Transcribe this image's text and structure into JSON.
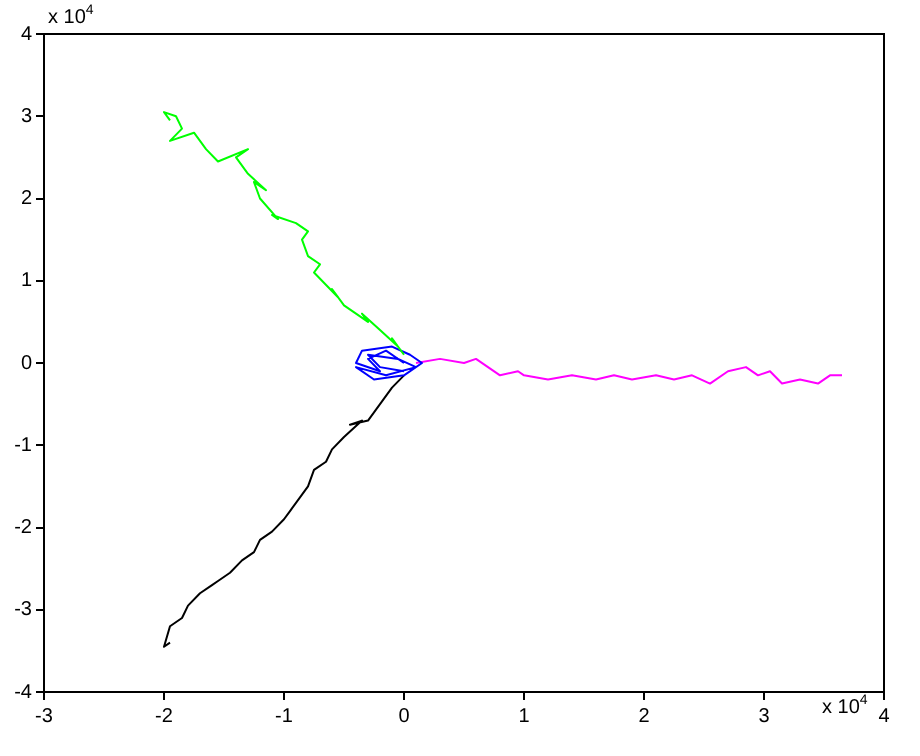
{
  "chart_data": {
    "type": "line",
    "marker": "none",
    "line_style": "solid",
    "grid": false,
    "legend": false,
    "xlim": [
      -3,
      4
    ],
    "ylim": [
      -4,
      4
    ],
    "xticks": [
      -3,
      -2,
      -1,
      0,
      1,
      2,
      3,
      4
    ],
    "yticks": [
      -4,
      -3,
      -2,
      -1,
      0,
      1,
      2,
      3,
      4
    ],
    "annotations": [
      "x 10$^{4}$",
      "x 10$^{4}$"
    ],
    "series": [
      {
        "color": "#00ff00",
        "x": [
          0,
          -0.1,
          -0.05,
          -0.2,
          -0.35,
          -0.3,
          -0.5,
          -0.6,
          -0.55,
          -0.75,
          -0.7,
          -0.8,
          -0.85,
          -0.8,
          -0.9,
          -1.1,
          -1.05,
          -1.2,
          -1.25,
          -1.15,
          -1.3,
          -1.4,
          -1.3,
          -1.55,
          -1.65,
          -1.75,
          -1.95,
          -1.85,
          -1.9,
          -2,
          -1.95
        ],
        "values": [
          0.1,
          0.3,
          0.2,
          0.4,
          0.6,
          0.5,
          0.7,
          0.9,
          0.8,
          1.1,
          1.2,
          1.3,
          1.5,
          1.6,
          1.7,
          1.8,
          1.75,
          2,
          2.2,
          2.1,
          2.3,
          2.5,
          2.6,
          2.45,
          2.6,
          2.8,
          2.7,
          2.85,
          3,
          3.05,
          2.95
        ]
      },
      {
        "color": "#0000ff",
        "x": [
          0,
          -0.15,
          -0.3,
          -0.2,
          -0.4,
          -0.35,
          -0.1,
          0.05,
          0.15,
          0,
          -0.25,
          -0.4,
          -0.15,
          0.1,
          -0.05,
          -0.3,
          -0.2,
          0
        ],
        "values": [
          0,
          0.15,
          0.05,
          -0.1,
          0,
          0.15,
          0.2,
          0.1,
          0,
          -0.15,
          -0.2,
          -0.05,
          -0.15,
          -0.05,
          0.05,
          0.1,
          -0.05,
          -0.1
        ]
      },
      {
        "color": "#ff00ff",
        "x": [
          0.1,
          0.3,
          0.5,
          0.6,
          0.8,
          0.95,
          1,
          1.2,
          1.4,
          1.6,
          1.75,
          1.9,
          2.1,
          2.25,
          2.4,
          2.55,
          2.7,
          2.85,
          2.95,
          3.05,
          3.15,
          3.3,
          3.45,
          3.55,
          3.65
        ],
        "values": [
          0,
          0.05,
          0,
          0.05,
          -0.15,
          -0.1,
          -0.15,
          -0.2,
          -0.15,
          -0.2,
          -0.15,
          -0.2,
          -0.15,
          -0.2,
          -0.15,
          -0.25,
          -0.1,
          -0.05,
          -0.15,
          -0.1,
          -0.25,
          -0.2,
          -0.25,
          -0.15,
          -0.15
        ]
      },
      {
        "color": "#000000",
        "x": [
          0,
          -0.1,
          -0.2,
          -0.3,
          -0.45,
          -0.35,
          -0.5,
          -0.6,
          -0.65,
          -0.75,
          -0.8,
          -0.85,
          -0.95,
          -1,
          -1.1,
          -1.2,
          -1.25,
          -1.35,
          -1.45,
          -1.55,
          -1.6,
          -1.7,
          -1.8,
          -1.85,
          -1.95,
          -2,
          -1.95
        ],
        "values": [
          -0.15,
          -0.3,
          -0.5,
          -0.7,
          -0.75,
          -0.7,
          -0.9,
          -1.05,
          -1.2,
          -1.3,
          -1.5,
          -1.6,
          -1.8,
          -1.9,
          -2.05,
          -2.15,
          -2.3,
          -2.4,
          -2.55,
          -2.65,
          -2.7,
          -2.8,
          -2.95,
          -3.1,
          -3.2,
          -3.45,
          -3.4
        ]
      }
    ]
  }
}
